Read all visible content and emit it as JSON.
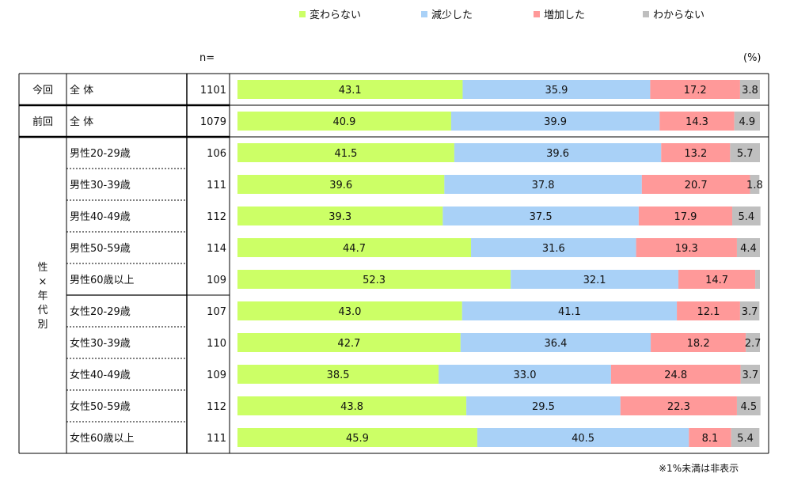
{
  "chart_data": {
    "type": "bar",
    "orientation": "horizontal",
    "stacked": true,
    "unit_label": "(%)",
    "n_header": "n=",
    "xlim": [
      0,
      100
    ],
    "series": [
      {
        "name": "変わらない",
        "color": "#ccff66"
      },
      {
        "name": "減少した",
        "color": "#a9d1f7"
      },
      {
        "name": "増加した",
        "color": "#ff9999"
      },
      {
        "name": "わからない",
        "color": "#bfbfbf"
      }
    ],
    "groups": [
      {
        "label": "今回",
        "rows": [
          {
            "label": "全 体",
            "n": "1101",
            "values": [
              43.1,
              35.9,
              17.2,
              3.8
            ],
            "labels": [
              "43.1",
              "35.9",
              "17.2",
              "3.8"
            ]
          }
        ]
      },
      {
        "label": "前回",
        "rows": [
          {
            "label": "全 体",
            "n": "1079",
            "values": [
              40.9,
              39.9,
              14.3,
              4.9
            ],
            "labels": [
              "40.9",
              "39.9",
              "14.3",
              "4.9"
            ]
          }
        ]
      },
      {
        "label": "性×年代別",
        "rows": [
          {
            "label": "男性20-29歳",
            "n": "106",
            "values": [
              41.5,
              39.6,
              13.2,
              5.7
            ],
            "labels": [
              "41.5",
              "39.6",
              "13.2",
              "5.7"
            ]
          },
          {
            "label": "男性30-39歳",
            "n": "111",
            "values": [
              39.6,
              37.8,
              20.7,
              1.8
            ],
            "labels": [
              "39.6",
              "37.8",
              "20.7",
              "1.8"
            ]
          },
          {
            "label": "男性40-49歳",
            "n": "112",
            "values": [
              39.3,
              37.5,
              17.9,
              5.4
            ],
            "labels": [
              "39.3",
              "37.5",
              "17.9",
              "5.4"
            ]
          },
          {
            "label": "男性50-59歳",
            "n": "114",
            "values": [
              44.7,
              31.6,
              19.3,
              4.4
            ],
            "labels": [
              "44.7",
              "31.6",
              "19.3",
              "4.4"
            ]
          },
          {
            "label": "男性60歳以上",
            "n": "109",
            "values": [
              52.3,
              32.1,
              14.7,
              0.9
            ],
            "labels": [
              "52.3",
              "32.1",
              "14.7",
              ""
            ]
          },
          {
            "label": "女性20-29歳",
            "n": "107",
            "values": [
              43.0,
              41.1,
              12.1,
              3.7
            ],
            "labels": [
              "43.0",
              "41.1",
              "12.1",
              "3.7"
            ]
          },
          {
            "label": "女性30-39歳",
            "n": "110",
            "values": [
              42.7,
              36.4,
              18.2,
              2.7
            ],
            "labels": [
              "42.7",
              "36.4",
              "18.2",
              "2.7"
            ]
          },
          {
            "label": "女性40-49歳",
            "n": "109",
            "values": [
              38.5,
              33.0,
              24.8,
              3.7
            ],
            "labels": [
              "38.5",
              "33.0",
              "24.8",
              "3.7"
            ]
          },
          {
            "label": "女性50-59歳",
            "n": "112",
            "values": [
              43.8,
              29.5,
              22.3,
              4.5
            ],
            "labels": [
              "43.8",
              "29.5",
              "22.3",
              "4.5"
            ]
          },
          {
            "label": "女性60歳以上",
            "n": "111",
            "values": [
              45.9,
              40.5,
              8.1,
              5.4
            ],
            "labels": [
              "45.9",
              "40.5",
              "8.1",
              "5.4"
            ]
          }
        ]
      }
    ],
    "footnote": "※1%未満は非表示"
  }
}
